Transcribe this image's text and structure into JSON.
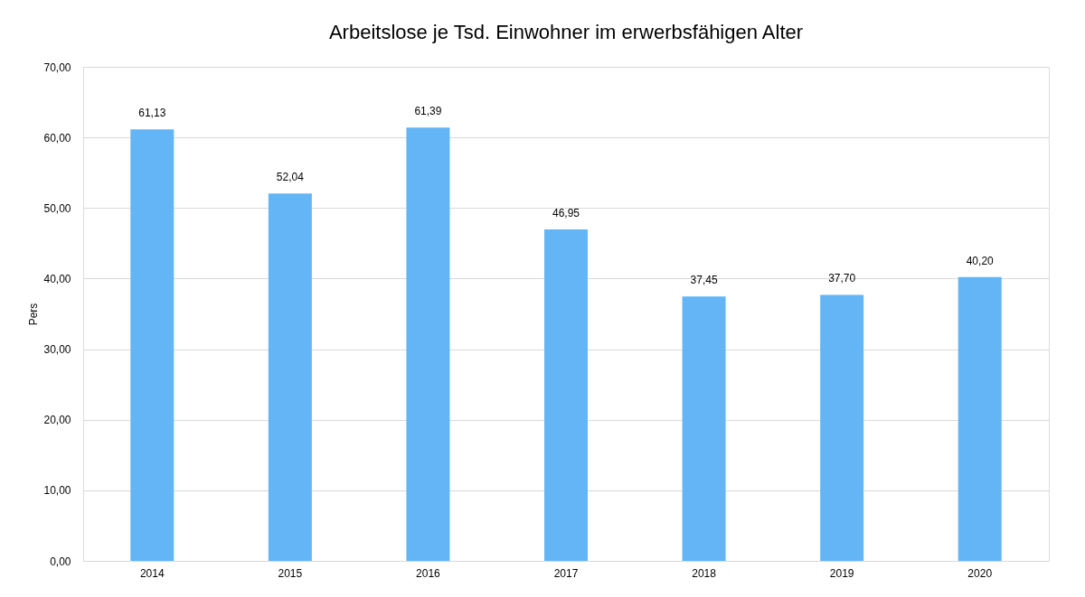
{
  "chart_data": {
    "type": "bar",
    "title": "Arbeitslose je Tsd. Einwohner im erwerbsfähigen Alter",
    "ylabel": "Pers",
    "categories": [
      "2014",
      "2015",
      "2016",
      "2017",
      "2018",
      "2019",
      "2020"
    ],
    "values": [
      61.13,
      52.04,
      61.39,
      46.95,
      37.45,
      37.7,
      40.2
    ],
    "value_labels": [
      "61,13",
      "52,04",
      "61,39",
      "46,95",
      "37,45",
      "37,70",
      "40,20"
    ],
    "color": "#63b5f5",
    "ylim": [
      0,
      70
    ],
    "yticks": [
      {
        "value": 0,
        "label": "0,00"
      },
      {
        "value": 10,
        "label": "10,00"
      },
      {
        "value": 20,
        "label": "20,00"
      },
      {
        "value": 30,
        "label": "30,00"
      },
      {
        "value": 40,
        "label": "40,00"
      },
      {
        "value": 50,
        "label": "50,00"
      },
      {
        "value": 60,
        "label": "60,00"
      },
      {
        "value": 70,
        "label": "70,00"
      }
    ],
    "grid": "y"
  }
}
